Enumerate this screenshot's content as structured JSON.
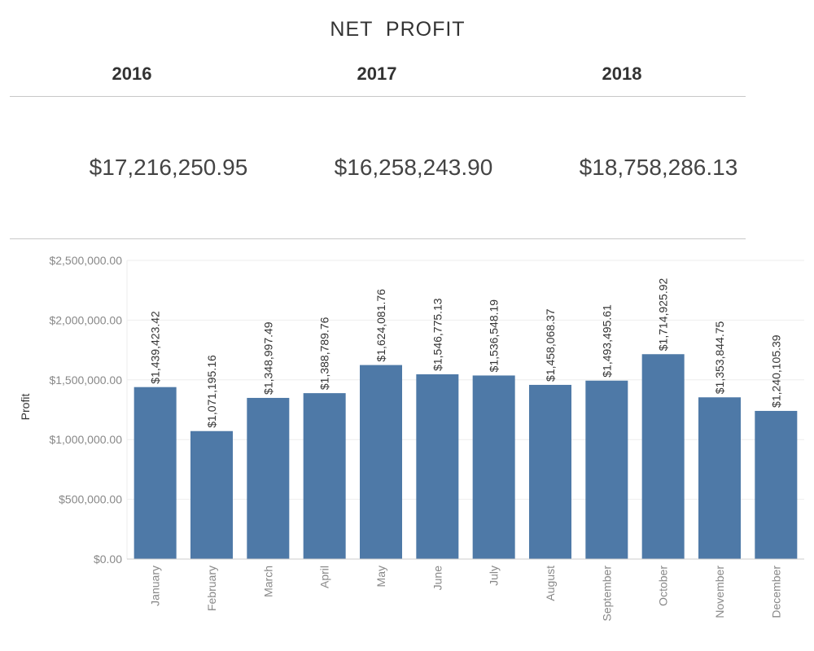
{
  "header": {
    "title": "NET  PROFIT"
  },
  "kpis": [
    {
      "year": "2016",
      "value": "$17,216,250.95"
    },
    {
      "year": "2017",
      "value": "$16,258,243.90"
    },
    {
      "year": "2018",
      "value": "$18,758,286.13"
    }
  ],
  "colors": {
    "bar": "#4e79a7",
    "grid": "#eeeeee",
    "axis": "#cccccc"
  },
  "chart_data": {
    "type": "bar",
    "categories": [
      "January",
      "February",
      "March",
      "April",
      "May",
      "June",
      "July",
      "August",
      "September",
      "October",
      "November",
      "December"
    ],
    "values": [
      1439423.42,
      1071195.16,
      1348997.49,
      1388789.76,
      1624081.76,
      1546775.13,
      1536548.19,
      1458068.37,
      1493495.61,
      1714925.92,
      1353844.75,
      1240105.39
    ],
    "data_labels": [
      "$1,439,423.42",
      "$1,071,195.16",
      "$1,348,997.49",
      "$1,388,789.76",
      "$1,624,081.76",
      "$1,546,775.13",
      "$1,536,548.19",
      "$1,458,068.37",
      "$1,493,495.61",
      "$1,714,925.92",
      "$1,353,844.75",
      "$1,240,105.39"
    ],
    "ylabel": "Profit",
    "xlabel": "",
    "ylim": [
      0,
      2500000
    ],
    "yticks": [
      0,
      500000,
      1000000,
      1500000,
      2000000,
      2500000
    ],
    "ytick_labels": [
      "$0.00",
      "$500,000.00",
      "$1,000,000.00",
      "$1,500,000.00",
      "$2,000,000.00",
      "$2,500,000.00"
    ],
    "grid": true
  }
}
